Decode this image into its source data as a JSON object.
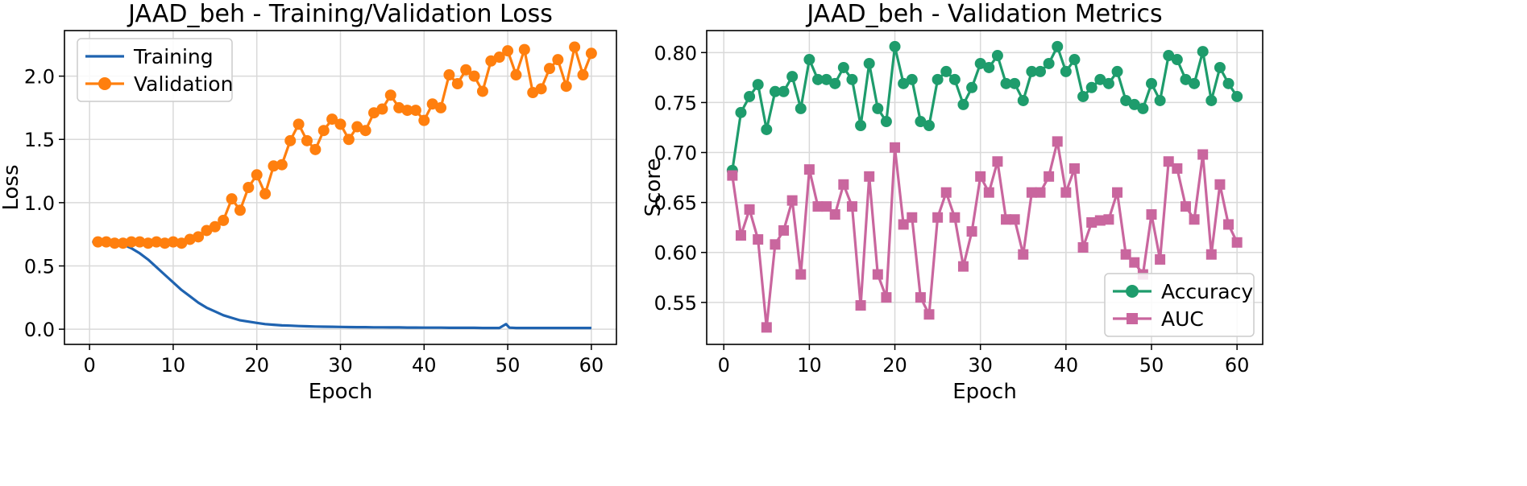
{
  "chart_data": [
    {
      "type": "line",
      "title": "JAAD_beh - Training/Validation Loss",
      "xlabel": "Epoch",
      "ylabel": "Loss",
      "xlim": [
        -3,
        63
      ],
      "ylim": [
        -0.12,
        2.36
      ],
      "xticks": [
        0,
        10,
        20,
        30,
        40,
        50,
        60
      ],
      "yticks": [
        0.0,
        0.5,
        1.0,
        1.5,
        2.0
      ],
      "ytick_labels": [
        "0.0",
        "0.5",
        "1.0",
        "1.5",
        "2.0"
      ],
      "grid": true,
      "legend": "top-left",
      "series": [
        {
          "name": "Training",
          "color": "#1f63b0",
          "marker": "none",
          "x": [
            0.3,
            1,
            2,
            3,
            4,
            5,
            6,
            7,
            8,
            9,
            10,
            11,
            12,
            13,
            14,
            15,
            16,
            17,
            18,
            19,
            20,
            21,
            22,
            23,
            24,
            25,
            26,
            27,
            28,
            29,
            30,
            31,
            32,
            33,
            34,
            35,
            36,
            37,
            38,
            39,
            40,
            41,
            42,
            43,
            44,
            45,
            46,
            47,
            48,
            49,
            49.8,
            50.2,
            51,
            52,
            53,
            54,
            55,
            56,
            57,
            58,
            59,
            60
          ],
          "y": [
            0.69,
            0.69,
            0.69,
            0.68,
            0.67,
            0.64,
            0.6,
            0.55,
            0.49,
            0.43,
            0.37,
            0.31,
            0.26,
            0.21,
            0.17,
            0.14,
            0.11,
            0.09,
            0.07,
            0.06,
            0.05,
            0.04,
            0.035,
            0.03,
            0.028,
            0.025,
            0.023,
            0.021,
            0.02,
            0.019,
            0.018,
            0.017,
            0.016,
            0.016,
            0.015,
            0.015,
            0.014,
            0.014,
            0.013,
            0.013,
            0.012,
            0.012,
            0.012,
            0.011,
            0.011,
            0.011,
            0.011,
            0.01,
            0.01,
            0.01,
            0.04,
            0.012,
            0.01,
            0.01,
            0.01,
            0.01,
            0.01,
            0.01,
            0.01,
            0.01,
            0.01,
            0.01
          ]
        },
        {
          "name": "Validation",
          "color": "#ff7f0e",
          "marker": "circle",
          "x": [
            1,
            2,
            3,
            4,
            5,
            6,
            7,
            8,
            9,
            10,
            11,
            12,
            13,
            14,
            15,
            16,
            17,
            18,
            19,
            20,
            21,
            22,
            23,
            24,
            25,
            26,
            27,
            28,
            29,
            30,
            31,
            32,
            33,
            34,
            35,
            36,
            37,
            38,
            39,
            40,
            41,
            42,
            43,
            44,
            45,
            46,
            47,
            48,
            49,
            50,
            51,
            52,
            53,
            54,
            55,
            56,
            57,
            58,
            59,
            60
          ],
          "y": [
            0.69,
            0.69,
            0.68,
            0.68,
            0.69,
            0.69,
            0.68,
            0.69,
            0.68,
            0.69,
            0.68,
            0.71,
            0.73,
            0.78,
            0.81,
            0.86,
            1.03,
            0.94,
            1.12,
            1.22,
            1.07,
            1.29,
            1.3,
            1.49,
            1.62,
            1.49,
            1.42,
            1.57,
            1.66,
            1.62,
            1.5,
            1.6,
            1.57,
            1.71,
            1.74,
            1.85,
            1.75,
            1.73,
            1.73,
            1.65,
            1.78,
            1.75,
            2.01,
            1.94,
            2.05,
            2.0,
            1.88,
            2.12,
            2.15,
            2.2,
            2.01,
            2.21,
            1.87,
            1.9,
            2.06,
            2.13,
            1.92,
            2.23,
            2.01,
            2.18
          ]
        }
      ]
    },
    {
      "type": "line",
      "title": "JAAD_beh - Validation Metrics",
      "xlabel": "Epoch",
      "ylabel": "Score",
      "xlim": [
        -2,
        63
      ],
      "ylim": [
        0.508,
        0.822
      ],
      "xticks": [
        0,
        10,
        20,
        30,
        40,
        50,
        60
      ],
      "yticks": [
        0.55,
        0.6,
        0.65,
        0.7,
        0.75,
        0.8
      ],
      "ytick_labels": [
        "0.55",
        "0.60",
        "0.65",
        "0.70",
        "0.75",
        "0.80"
      ],
      "grid": true,
      "legend": "bottom-right",
      "series": [
        {
          "name": "Accuracy",
          "color": "#1e9c6c",
          "marker": "circle",
          "x": [
            1,
            2,
            3,
            4,
            5,
            6,
            7,
            8,
            9,
            10,
            11,
            12,
            13,
            14,
            15,
            16,
            17,
            18,
            19,
            20,
            21,
            22,
            23,
            24,
            25,
            26,
            27,
            28,
            29,
            30,
            31,
            32,
            33,
            34,
            35,
            36,
            37,
            38,
            39,
            40,
            41,
            42,
            43,
            44,
            45,
            46,
            47,
            48,
            49,
            50,
            51,
            52,
            53,
            54,
            55,
            56,
            57,
            58,
            59,
            60
          ],
          "y": [
            0.682,
            0.74,
            0.756,
            0.768,
            0.723,
            0.761,
            0.761,
            0.776,
            0.744,
            0.793,
            0.773,
            0.773,
            0.769,
            0.785,
            0.773,
            0.727,
            0.789,
            0.744,
            0.731,
            0.806,
            0.769,
            0.773,
            0.731,
            0.727,
            0.773,
            0.781,
            0.773,
            0.748,
            0.765,
            0.789,
            0.785,
            0.797,
            0.769,
            0.769,
            0.752,
            0.781,
            0.781,
            0.789,
            0.806,
            0.781,
            0.793,
            0.756,
            0.765,
            0.773,
            0.769,
            0.781,
            0.752,
            0.748,
            0.744,
            0.769,
            0.752,
            0.797,
            0.793,
            0.773,
            0.769,
            0.801,
            0.752,
            0.785,
            0.769,
            0.756
          ]
        },
        {
          "name": "AUC",
          "color": "#c9669e",
          "marker": "square",
          "x": [
            1,
            2,
            3,
            4,
            5,
            6,
            7,
            8,
            9,
            10,
            11,
            12,
            13,
            14,
            15,
            16,
            17,
            18,
            19,
            20,
            21,
            22,
            23,
            24,
            25,
            26,
            27,
            28,
            29,
            30,
            31,
            32,
            33,
            34,
            35,
            36,
            37,
            38,
            39,
            40,
            41,
            42,
            43,
            44,
            45,
            46,
            47,
            48,
            49,
            50,
            51,
            52,
            53,
            54,
            55,
            56,
            57,
            58,
            59,
            60
          ],
          "y": [
            0.677,
            0.617,
            0.643,
            0.613,
            0.525,
            0.608,
            0.622,
            0.652,
            0.578,
            0.683,
            0.646,
            0.646,
            0.638,
            0.668,
            0.646,
            0.547,
            0.676,
            0.578,
            0.555,
            0.705,
            0.628,
            0.635,
            0.555,
            0.538,
            0.635,
            0.66,
            0.635,
            0.586,
            0.621,
            0.676,
            0.66,
            0.691,
            0.633,
            0.633,
            0.598,
            0.66,
            0.66,
            0.676,
            0.711,
            0.66,
            0.684,
            0.605,
            0.63,
            0.632,
            0.633,
            0.66,
            0.598,
            0.59,
            0.578,
            0.638,
            0.593,
            0.691,
            0.684,
            0.646,
            0.633,
            0.698,
            0.598,
            0.668,
            0.628,
            0.61
          ]
        }
      ]
    }
  ]
}
